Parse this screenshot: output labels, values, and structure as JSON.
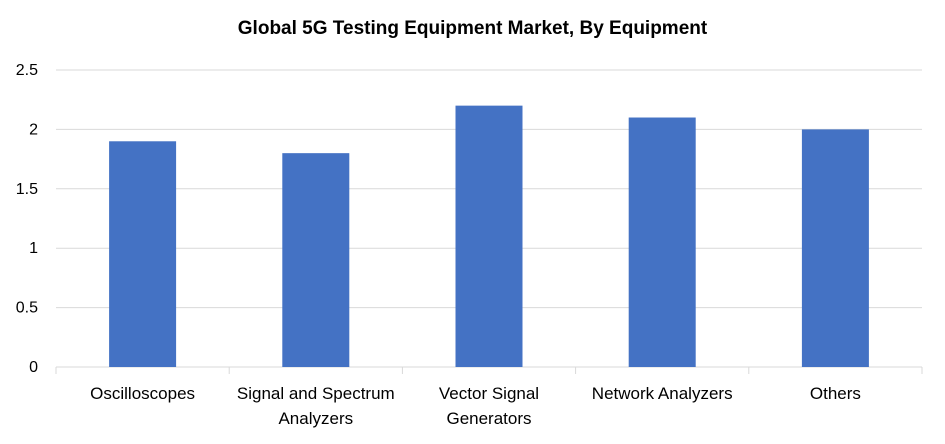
{
  "chart_data": {
    "type": "bar",
    "title": "Global 5G Testing Equipment Market, By Equipment",
    "categories": [
      [
        "Oscilloscopes"
      ],
      [
        "Signal and Spectrum",
        "Analyzers"
      ],
      [
        "Vector Signal",
        "Generators"
      ],
      [
        "Network Analyzers"
      ],
      [
        "Others"
      ]
    ],
    "values": [
      1.9,
      1.8,
      2.2,
      2.1,
      2.0
    ],
    "ylim": [
      0,
      2.5
    ],
    "yticks": [
      "0",
      "0.5",
      "1",
      "1.5",
      "2",
      "2.5"
    ],
    "ytick_values": [
      0,
      0.5,
      1,
      1.5,
      2,
      2.5
    ],
    "xlabel": "",
    "ylabel": "",
    "grid": true,
    "legend": "none",
    "bar_color": "#4472C4",
    "grid_color": "#D9D9D9"
  }
}
